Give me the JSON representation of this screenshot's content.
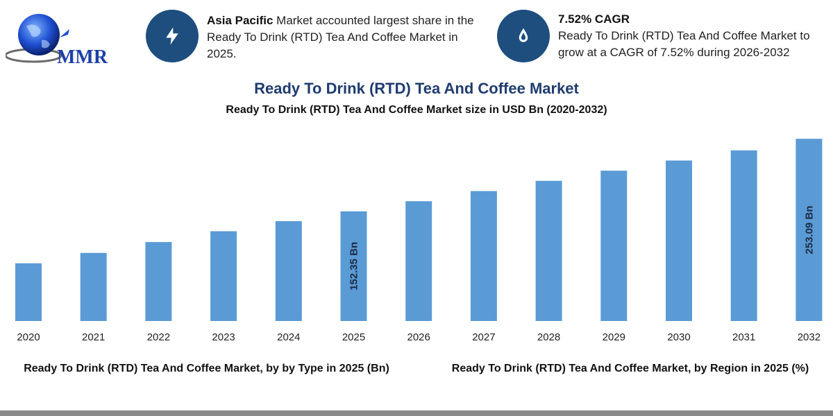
{
  "logo": {
    "text": "MMR",
    "icon": "globe-icon"
  },
  "info1": {
    "icon": "lightning-icon",
    "bold": "Asia Pacific",
    "text": " Market accounted largest share in the Ready To Drink (RTD) Tea And Coffee Market in 2025."
  },
  "info2": {
    "icon": "drop-icon",
    "bold": "7.52% CAGR",
    "text": "Ready To Drink (RTD) Tea And Coffee Market to grow at a CAGR of 7.52% during 2026-2032"
  },
  "colors": {
    "bar": "#5b9bd5",
    "accent": "#1d4e7e",
    "title": "#1f3c6e"
  },
  "chart_data": {
    "type": "bar",
    "title": "Ready To Drink (RTD) Tea And Coffee Market",
    "subtitle": "Ready To Drink (RTD) Tea And Coffee Market size in USD Bn (2020-2032)",
    "categories": [
      "2020",
      "2021",
      "2022",
      "2023",
      "2024",
      "2025",
      "2026",
      "2027",
      "2028",
      "2029",
      "2030",
      "2031",
      "2032"
    ],
    "values": [
      80.2,
      94.6,
      109.7,
      124.7,
      138.7,
      152.35,
      166.4,
      180.5,
      194.7,
      208.8,
      222.9,
      237.0,
      253.09
    ],
    "data_labels": [
      {
        "index": 5,
        "text": "152.35 Bn"
      },
      {
        "index": 12,
        "text": "253.09 Bn"
      }
    ],
    "ylim": [
      0,
      260
    ],
    "grid": false,
    "xlabel": "",
    "ylabel": ""
  },
  "bottom": {
    "left": "Ready To Drink (RTD) Tea And Coffee Market, by by Type in 2025 (Bn)",
    "right": "Ready To Drink (RTD) Tea And Coffee Market, by Region in 2025 (%)"
  }
}
